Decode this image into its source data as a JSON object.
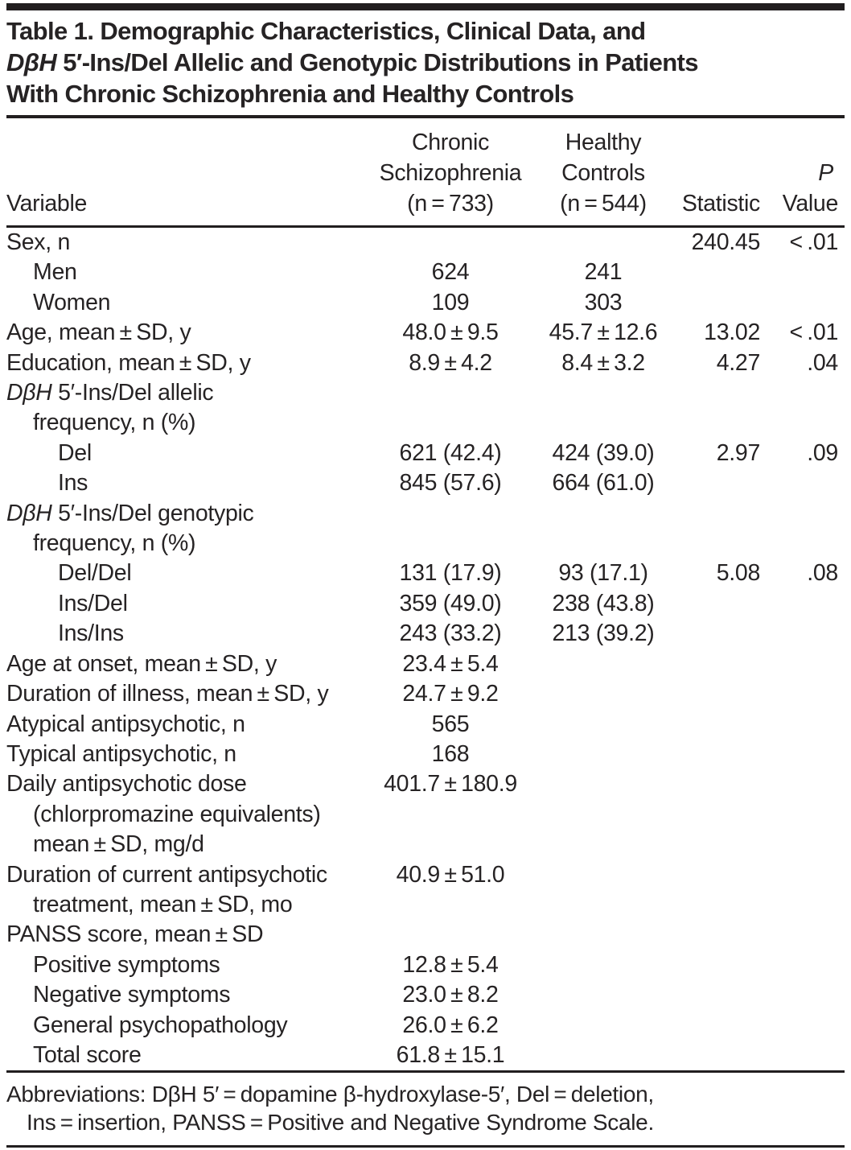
{
  "title": {
    "line1": "Table 1. Demographic Characteristics, Clinical Data, and",
    "line2_em": "DβH",
    "line2_rest": " 5′-Ins/Del Allelic and Genotypic Distributions in Patients",
    "line3": "With Chronic Schizophrenia and Healthy Controls"
  },
  "header": {
    "variable": "Variable",
    "chronic": [
      "Chronic",
      "Schizophrenia",
      "(n = 733)"
    ],
    "healthy": [
      "Healthy",
      "Controls",
      "(n = 544)"
    ],
    "statistic": "Statistic",
    "p": [
      "P",
      "Value"
    ]
  },
  "rows": [
    {
      "indent": 0,
      "label": "Sex, n",
      "c1": "",
      "c2": "",
      "c3": "240.45",
      "c4": "< .01"
    },
    {
      "indent": 1,
      "label": "Men",
      "c1": "624",
      "c2": "241",
      "c3": "",
      "c4": ""
    },
    {
      "indent": 1,
      "label": "Women",
      "c1": "109",
      "c2": "303",
      "c3": "",
      "c4": ""
    },
    {
      "indent": 0,
      "label": "Age, mean ± SD, y",
      "c1": "48.0 ± 9.5",
      "c2": "45.7 ± 12.6",
      "c3": "13.02",
      "c4": "< .01"
    },
    {
      "indent": 0,
      "label": "Education, mean ± SD, y",
      "c1": "8.9 ± 4.2",
      "c2": "8.4 ± 3.2",
      "c3": "4.27",
      "c4": ".04"
    },
    {
      "indent": 0,
      "em": "DβH",
      "label": " 5′-Ins/Del allelic",
      "c1": "",
      "c2": "",
      "c3": "",
      "c4": ""
    },
    {
      "indent": 1,
      "label": "frequency, n (%)",
      "c1": "",
      "c2": "",
      "c3": "",
      "c4": ""
    },
    {
      "indent": 2,
      "label": "Del",
      "c1": "621 (42.4)",
      "c2": "424 (39.0)",
      "c3": "2.97",
      "c4": ".09"
    },
    {
      "indent": 2,
      "label": "Ins",
      "c1": "845 (57.6)",
      "c2": "664 (61.0)",
      "c3": "",
      "c4": ""
    },
    {
      "indent": 0,
      "em": "DβH",
      "label": " 5′-Ins/Del genotypic",
      "c1": "",
      "c2": "",
      "c3": "",
      "c4": ""
    },
    {
      "indent": 1,
      "label": "frequency, n (%)",
      "c1": "",
      "c2": "",
      "c3": "",
      "c4": ""
    },
    {
      "indent": 2,
      "label": "Del/Del",
      "c1": "131 (17.9)",
      "c2": "93 (17.1)",
      "c3": "5.08",
      "c4": ".08"
    },
    {
      "indent": 2,
      "label": "Ins/Del",
      "c1": "359 (49.0)",
      "c2": "238 (43.8)",
      "c3": "",
      "c4": ""
    },
    {
      "indent": 2,
      "label": "Ins/Ins",
      "c1": "243 (33.2)",
      "c2": "213 (39.2)",
      "c3": "",
      "c4": ""
    },
    {
      "indent": 0,
      "label": "Age at onset, mean ± SD, y",
      "c1": "23.4 ± 5.4",
      "c2": "",
      "c3": "",
      "c4": ""
    },
    {
      "indent": 0,
      "label": "Duration of illness, mean ± SD, y",
      "c1": "24.7 ± 9.2",
      "c2": "",
      "c3": "",
      "c4": ""
    },
    {
      "indent": 0,
      "label": "Atypical antipsychotic, n",
      "c1": "565",
      "c2": "",
      "c3": "",
      "c4": ""
    },
    {
      "indent": 0,
      "label": "Typical antipsychotic, n",
      "c1": "168",
      "c2": "",
      "c3": "",
      "c4": ""
    },
    {
      "indent": 0,
      "label": "Daily antipsychotic dose",
      "c1": "401.7 ± 180.9",
      "c2": "",
      "c3": "",
      "c4": ""
    },
    {
      "indent": 1,
      "label": "(chlorpromazine equivalents)",
      "c1": "",
      "c2": "",
      "c3": "",
      "c4": ""
    },
    {
      "indent": 1,
      "label": "mean ± SD, mg/d",
      "c1": "",
      "c2": "",
      "c3": "",
      "c4": ""
    },
    {
      "indent": 0,
      "label": "Duration of current antipsychotic",
      "c1": "40.9 ± 51.0",
      "c2": "",
      "c3": "",
      "c4": ""
    },
    {
      "indent": 1,
      "label": "treatment, mean ± SD, mo",
      "c1": "",
      "c2": "",
      "c3": "",
      "c4": ""
    },
    {
      "indent": 0,
      "label": "PANSS score, mean ± SD",
      "c1": "",
      "c2": "",
      "c3": "",
      "c4": ""
    },
    {
      "indent": 1,
      "label": "Positive symptoms",
      "c1": "12.8 ± 5.4",
      "c2": "",
      "c3": "",
      "c4": ""
    },
    {
      "indent": 1,
      "label": "Negative symptoms",
      "c1": "23.0 ± 8.2",
      "c2": "",
      "c3": "",
      "c4": ""
    },
    {
      "indent": 1,
      "label": "General psychopathology",
      "c1": "26.0 ± 6.2",
      "c2": "",
      "c3": "",
      "c4": ""
    },
    {
      "indent": 1,
      "label": "Total score",
      "c1": "61.8 ± 15.1",
      "c2": "",
      "c3": "",
      "c4": ""
    }
  ],
  "footnote": {
    "line1": "Abbreviations: DβH 5′ = dopamine β-hydroxylase-5′, Del = deletion,",
    "line2": "Ins = insertion, PANSS = Positive and Negative Syndrome Scale."
  },
  "colors": {
    "background": "#ffffff",
    "text": "#262324",
    "rule": "#211e1f"
  }
}
